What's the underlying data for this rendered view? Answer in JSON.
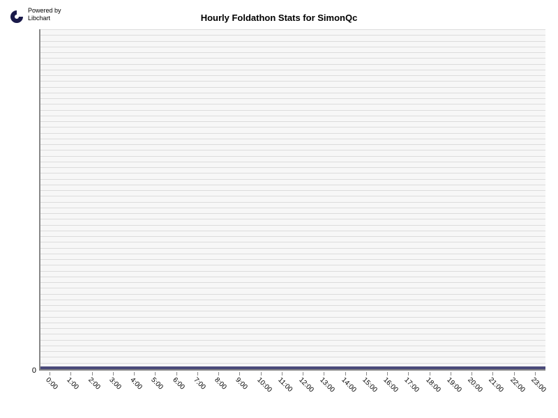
{
  "logo": {
    "line1": "Powered by",
    "line2": "Libchart",
    "icon_color": "#1a1a4a"
  },
  "chart": {
    "type": "bar",
    "title": "Hourly Foldathon Stats for SimonQc",
    "title_fontsize": 13,
    "title_fontweight": "bold",
    "background_color": "#ffffff",
    "plot_background": "#f7f7f7",
    "axis_color": "#888888",
    "grid_color": "#dcdcdc",
    "gridline_count": 60,
    "bottom_line_color": "#4a4a7a",
    "y": {
      "min": 0,
      "max": 0,
      "ticks": [
        {
          "pos": 1.0,
          "label": "0"
        }
      ],
      "label_fontsize": 11
    },
    "x": {
      "categories": [
        "0:00",
        "1:00",
        "2:00",
        "3:00",
        "4:00",
        "5:00",
        "6:00",
        "7:00",
        "8:00",
        "9:00",
        "10:00",
        "11:00",
        "12:00",
        "13:00",
        "14:00",
        "15:00",
        "16:00",
        "17:00",
        "18:00",
        "19:00",
        "20:00",
        "21:00",
        "22:00",
        "23:00"
      ],
      "rotation_deg": 45,
      "label_fontsize": 10
    },
    "values": [
      0,
      0,
      0,
      0,
      0,
      0,
      0,
      0,
      0,
      0,
      0,
      0,
      0,
      0,
      0,
      0,
      0,
      0,
      0,
      0,
      0,
      0,
      0,
      0
    ]
  }
}
